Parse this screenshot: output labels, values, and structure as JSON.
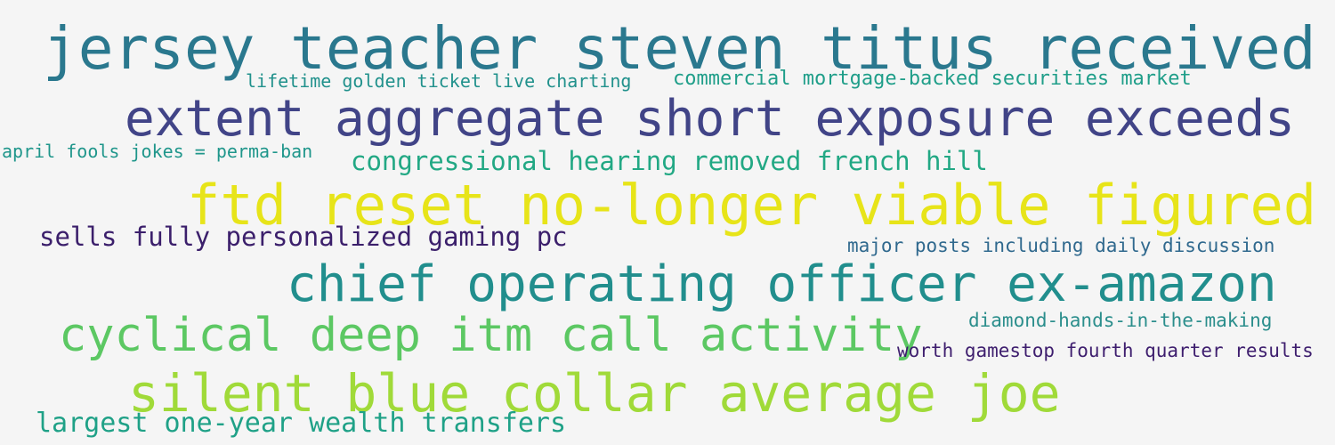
{
  "phrases": [
    {
      "text": "jersey teacher steven titus received",
      "color": "#2a788e"
    },
    {
      "text": "lifetime golden ticket live charting",
      "color": "#21918c"
    },
    {
      "text": "commercial mortgage-backed securities market",
      "color": "#1f9e89"
    },
    {
      "text": "extent aggregate short exposure exceeds",
      "color": "#414487"
    },
    {
      "text": "april fools jokes = perma-ban",
      "color": "#1f968b"
    },
    {
      "text": "congressional hearing removed french hill",
      "color": "#22a884"
    },
    {
      "text": "ftd reset no-longer viable figured",
      "color": "#e7e419"
    },
    {
      "text": "sells fully personalized gaming pc",
      "color": "#3b1f6b"
    },
    {
      "text": "major posts including daily discussion",
      "color": "#30698e"
    },
    {
      "text": "chief operating officer ex-amazon",
      "color": "#218e8d"
    },
    {
      "text": "diamond-hands-in-the-making",
      "color": "#2b8e8c"
    },
    {
      "text": "cyclical deep itm call activity",
      "color": "#5cc863"
    },
    {
      "text": "worth gamestop fourth quarter results",
      "color": "#3e1e6e"
    },
    {
      "text": "silent blue collar average joe",
      "color": "#a0da39"
    },
    {
      "text": "largest one-year wealth transfers",
      "color": "#1fa187"
    }
  ]
}
